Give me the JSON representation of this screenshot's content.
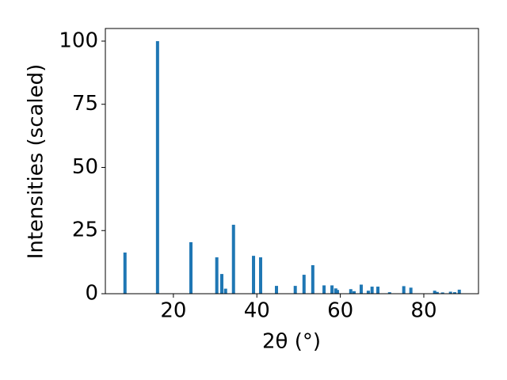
{
  "chart_data": {
    "type": "bar",
    "xlabel": "2θ (°)",
    "ylabel": "Intensities (scaled)",
    "x": [
      8.4,
      16.2,
      24.2,
      30.4,
      31.6,
      32.5,
      34.4,
      39.2,
      40.9,
      44.7,
      49.2,
      51.3,
      53.4,
      56.1,
      58.0,
      58.9,
      59.3,
      62.5,
      63.3,
      65.0,
      66.7,
      67.6,
      69.0,
      71.8,
      75.2,
      76.9,
      82.6,
      83.2,
      84.5,
      86.4,
      87.4,
      88.5
    ],
    "values": [
      16.3,
      100,
      20.4,
      14.4,
      7.8,
      2,
      27.3,
      15,
      14.4,
      3.1,
      3.1,
      7.5,
      11.3,
      3.3,
      3.3,
      2.1,
      1.5,
      1.8,
      1,
      3.6,
      1.2,
      2.8,
      2.8,
      0.6,
      3,
      2.4,
      1.2,
      0.7,
      0.5,
      0.8,
      0.6,
      1.6
    ],
    "color": "#1f77b4",
    "xlim": [
      3.7,
      93.1
    ],
    "xticks": [
      20,
      40,
      60,
      80
    ],
    "ylim": [
      0,
      105
    ],
    "yticks": [
      0,
      25,
      50,
      75,
      100
    ]
  }
}
